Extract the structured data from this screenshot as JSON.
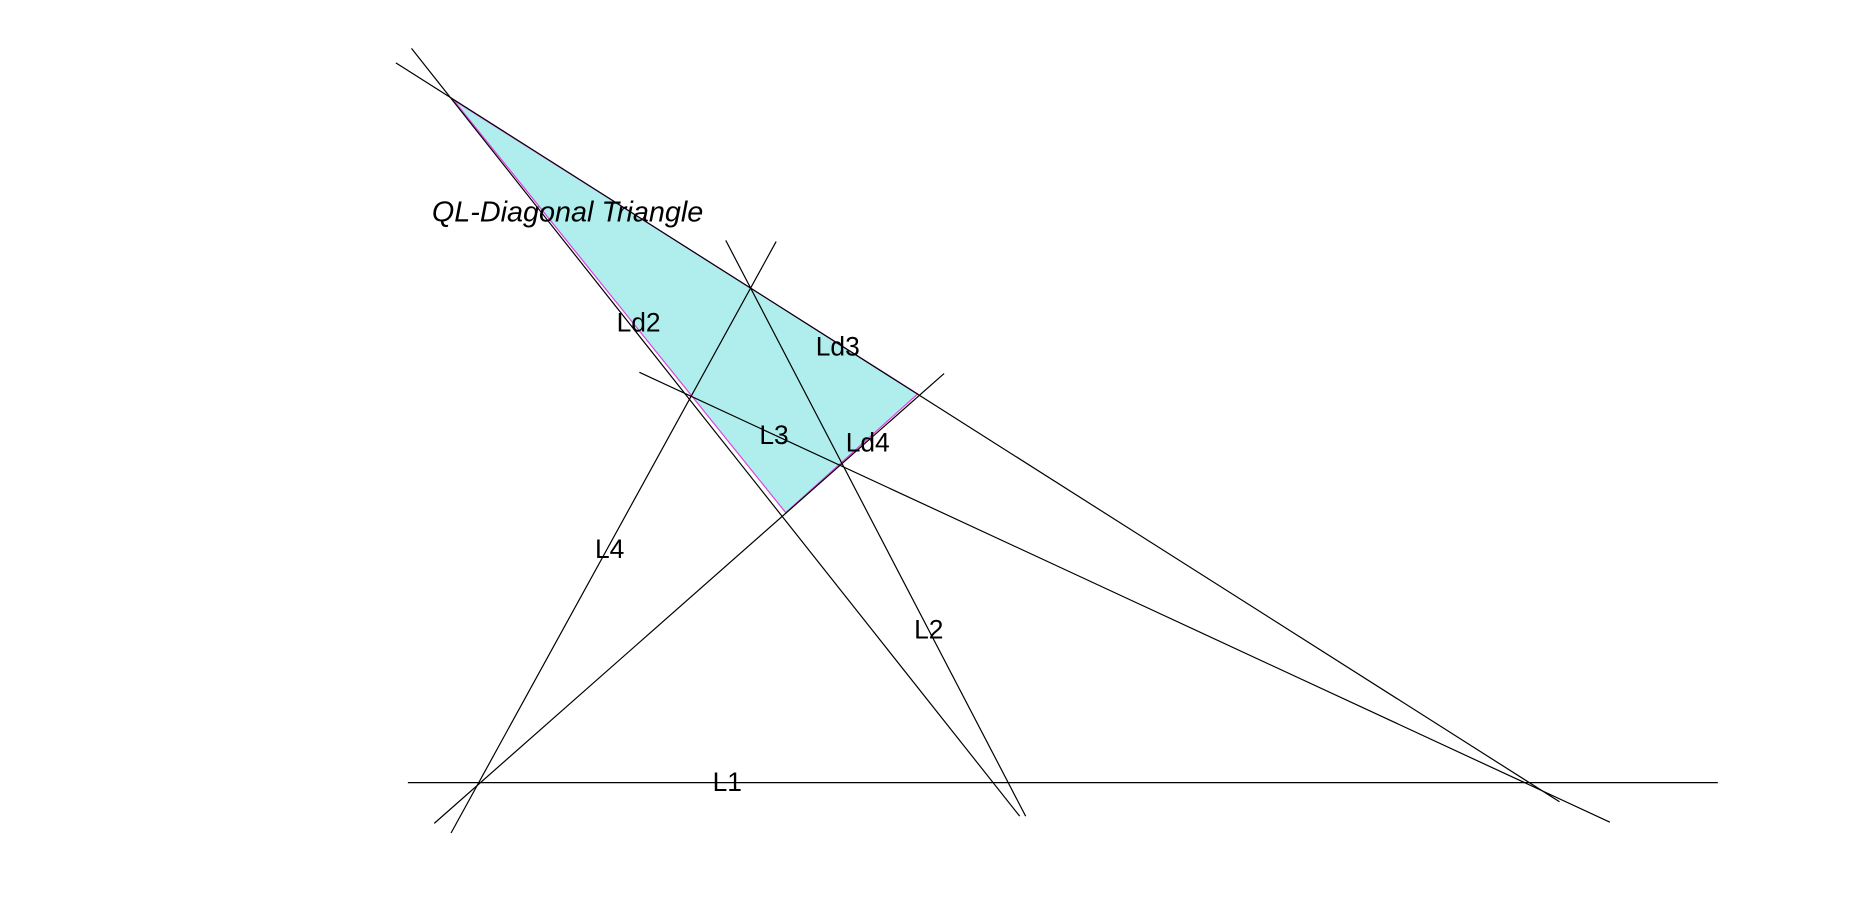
{
  "title": "QL-Diagonal Triangle",
  "labels": [
    "Ld2",
    "Ld3",
    "L3",
    "Ld4",
    "L4",
    "L2",
    "L1"
  ]
}
